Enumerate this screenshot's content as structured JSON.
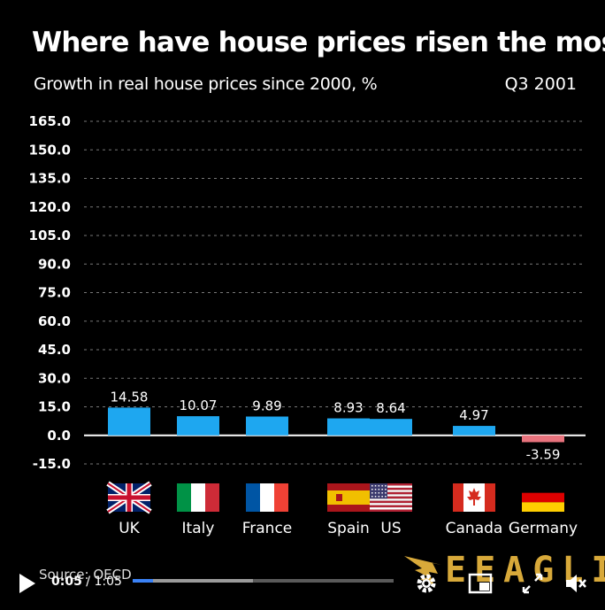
{
  "header": {
    "title": "Where have house prices risen the most?",
    "subtitle": "Growth in real house prices since 2000, %",
    "period": "Q3 2001"
  },
  "footer": {
    "source": "Source: OECD",
    "logo_text": "EEAGLI"
  },
  "player": {
    "current_time": "0:05",
    "separator": " / ",
    "duration": "1:05",
    "played_fraction": 0.077,
    "buffered_fraction": 0.46,
    "progress_color": "#3b82f6"
  },
  "chart_data": {
    "type": "bar",
    "title": "Where have house prices risen the most?",
    "subtitle": "Growth in real house prices since 2000, %",
    "categories": [
      "UK",
      "Italy",
      "France",
      "Spain",
      "US",
      "Canada",
      "Germany"
    ],
    "values": [
      14.58,
      10.07,
      9.89,
      8.93,
      8.64,
      4.97,
      -3.59
    ],
    "value_labels": [
      "14.58",
      "10.07",
      "9.89",
      "8.93",
      "8.64",
      "4.97",
      "-3.59"
    ],
    "yticks": [
      "165.0",
      "150.0",
      "135.0",
      "120.0",
      "105.0",
      "90.0",
      "75.0",
      "60.0",
      "45.0",
      "30.0",
      "15.0",
      "0.0",
      "-15.0"
    ],
    "ylim": [
      -15,
      165
    ],
    "grid": true,
    "colors": {
      "positive": "#1ea7f0",
      "negative": "#e8737d",
      "background": "#000000",
      "grid": "#777777"
    },
    "flags": [
      "uk-flag",
      "italy-flag",
      "france-flag",
      "spain-flag",
      "us-flag",
      "canada-flag",
      "germany-flag"
    ]
  }
}
